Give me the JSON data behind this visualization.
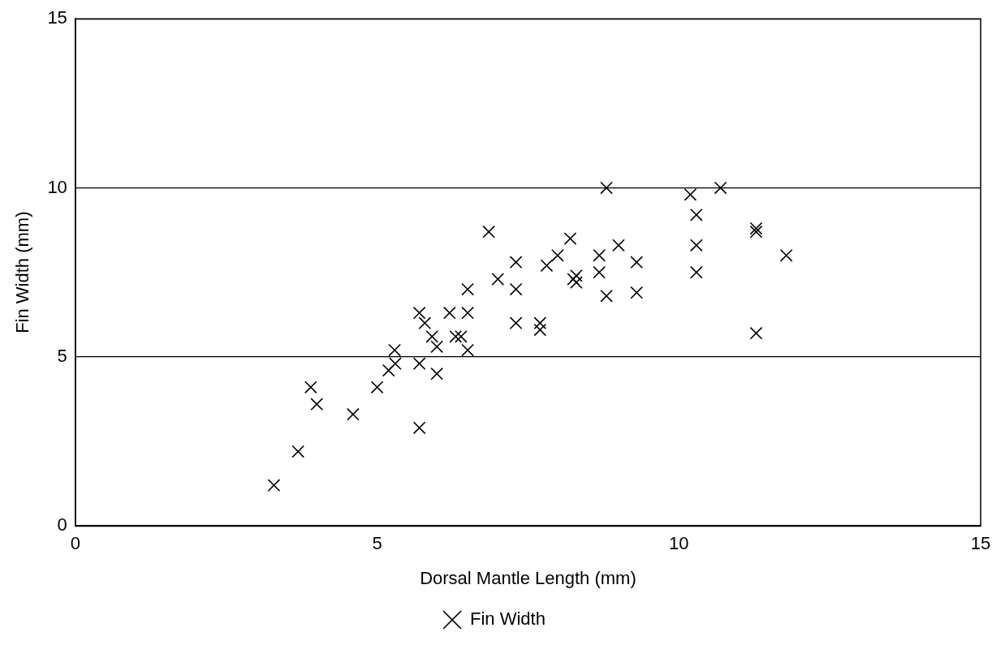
{
  "chart_data": {
    "type": "scatter",
    "xlabel": "Dorsal Mantle Length (mm)",
    "ylabel": "Fin Width (mm)",
    "xlim": [
      0,
      15
    ],
    "xticks": [
      0,
      5,
      10,
      15
    ],
    "ylim": [
      0,
      15
    ],
    "yticks": [
      0,
      5,
      10,
      15
    ],
    "grid": "y",
    "legend": "bottom",
    "marker": "cross",
    "series": [
      {
        "name": "Fin Width",
        "color": "#000000",
        "x": [
          3.29,
          3.69,
          3.9,
          4.0,
          4.6,
          5.0,
          5.19,
          5.3,
          5.29,
          5.7,
          5.7,
          5.99,
          5.7,
          5.79,
          5.91,
          5.99,
          6.2,
          6.3,
          6.39,
          6.5,
          6.5,
          6.5,
          6.85,
          7.0,
          7.3,
          7.3,
          7.3,
          7.7,
          7.7,
          7.81,
          7.99,
          8.2,
          8.25,
          8.3,
          8.3,
          8.68,
          8.68,
          8.8,
          8.8,
          9.0,
          9.3,
          9.3,
          10.19,
          10.29,
          10.29,
          10.29,
          10.69,
          11.28,
          11.28,
          11.78,
          11.28
        ],
        "values": [
          1.2,
          2.2,
          4.1,
          3.6,
          3.3,
          4.1,
          4.6,
          4.8,
          5.2,
          4.8,
          2.9,
          4.5,
          6.3,
          6.0,
          5.6,
          5.3,
          6.3,
          5.6,
          5.6,
          5.2,
          6.3,
          7.0,
          8.7,
          7.3,
          7.8,
          7.0,
          6.0,
          6.0,
          5.8,
          7.7,
          8.0,
          8.5,
          7.3,
          7.4,
          7.2,
          8.0,
          7.5,
          10.0,
          6.8,
          8.3,
          7.8,
          6.9,
          9.8,
          9.2,
          8.3,
          7.5,
          10.0,
          8.8,
          8.7,
          8.0,
          5.7
        ]
      }
    ]
  }
}
